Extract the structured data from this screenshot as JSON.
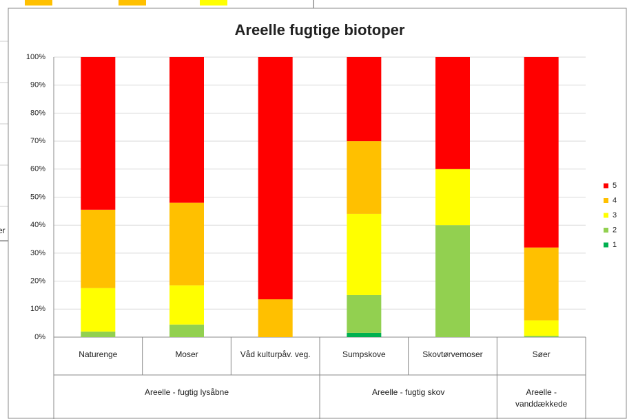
{
  "background_text": "er",
  "chart_data": {
    "type": "stacked_bar",
    "title": "Areelle fugtige biotoper",
    "categories": [
      "Naturenge",
      "Moser",
      "Våd kulturpåv. veg.",
      "Sumpskove",
      "Skovtørvemoser",
      "Søer"
    ],
    "groups": [
      {
        "label": "Areelle - fugtig lysåbne",
        "span": 3
      },
      {
        "label": "Areelle - fugtig skov",
        "span": 2
      },
      {
        "label": "Areelle - vanddækkede",
        "span": 1
      }
    ],
    "series": [
      {
        "name": "1",
        "color": "#00b050",
        "values": [
          0,
          0,
          0,
          1.5,
          0,
          0
        ]
      },
      {
        "name": "2",
        "color": "#92d050",
        "values": [
          2,
          4.5,
          0,
          13.5,
          40,
          0.5
        ]
      },
      {
        "name": "3",
        "color": "#ffff00",
        "values": [
          15.5,
          14,
          0,
          29,
          20,
          5.5
        ]
      },
      {
        "name": "4",
        "color": "#ffc000",
        "values": [
          28,
          29.5,
          13.5,
          26,
          0,
          26
        ]
      },
      {
        "name": "5",
        "color": "#ff0000",
        "values": [
          54.5,
          52,
          86.5,
          30,
          40,
          68
        ]
      }
    ],
    "ylim": [
      0,
      100
    ],
    "yticks": [
      {
        "value": 0,
        "label": "0%"
      },
      {
        "value": 10,
        "label": "10%"
      },
      {
        "value": 20,
        "label": "20%"
      },
      {
        "value": 30,
        "label": "30%"
      },
      {
        "value": 40,
        "label": "40%"
      },
      {
        "value": 50,
        "label": "50%"
      },
      {
        "value": 60,
        "label": "60%"
      },
      {
        "value": 70,
        "label": "70%"
      },
      {
        "value": 80,
        "label": "80%"
      },
      {
        "value": 90,
        "label": "90%"
      },
      {
        "value": 100,
        "label": "100%"
      }
    ],
    "grid": true,
    "legend": "right"
  }
}
